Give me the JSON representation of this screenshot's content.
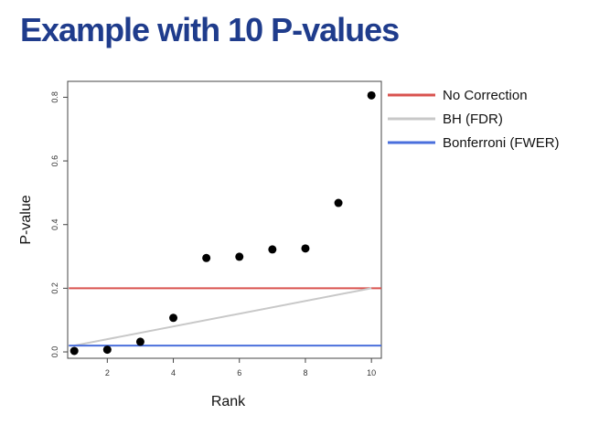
{
  "slide": {
    "title": "Example with 10 P-values"
  },
  "chart_data": {
    "type": "scatter",
    "title": "",
    "xlabel": "Rank",
    "ylabel": "P-value",
    "xlim": [
      0.8,
      10.3
    ],
    "ylim": [
      -0.02,
      0.85
    ],
    "xticks": [
      2,
      4,
      6,
      8,
      10
    ],
    "yticks": [
      0.0,
      0.2,
      0.4,
      0.6,
      0.8
    ],
    "ytick_labels": [
      "0.0",
      "0.2",
      "0.4",
      "0.6",
      "0.8"
    ],
    "grid": false,
    "legend_position": "outside-right",
    "points": {
      "x": [
        1,
        2,
        3,
        4,
        5,
        6,
        7,
        8,
        9,
        10
      ],
      "y": [
        0.003,
        0.007,
        0.032,
        0.107,
        0.295,
        0.299,
        0.322,
        0.325,
        0.468,
        0.806
      ],
      "color": "#000000"
    },
    "lines": [
      {
        "name": "No Correction",
        "kind": "horizontal",
        "y": 0.2,
        "color": "#d9534f"
      },
      {
        "name": "BH (FDR)",
        "kind": "segment",
        "x": [
          1,
          10
        ],
        "y": [
          0.02,
          0.2
        ],
        "color": "#c8c8c8"
      },
      {
        "name": "Bonferroni (FWER)",
        "kind": "horizontal",
        "y": 0.02,
        "color": "#4a6fdc"
      }
    ]
  }
}
